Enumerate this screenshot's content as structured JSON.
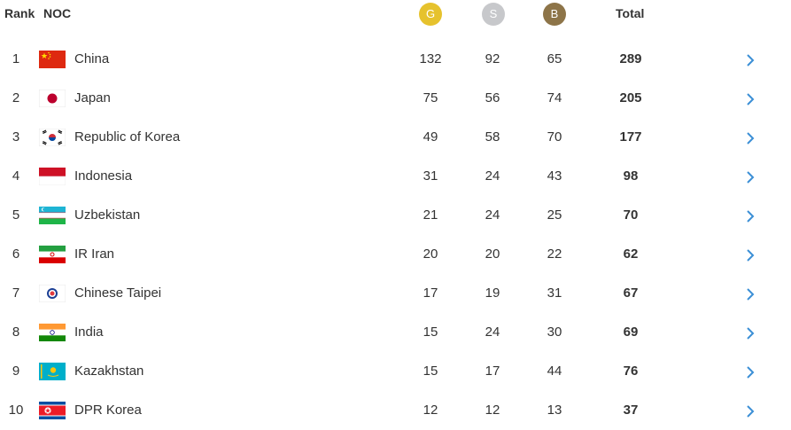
{
  "header": {
    "rank": "Rank",
    "noc": "NOC",
    "gold": "G",
    "silver": "S",
    "bronze": "B",
    "total": "Total"
  },
  "colors": {
    "gold": "#e6c22d",
    "silver": "#c7c8cb",
    "bronze": "#8d7448",
    "chevron": "#3b8fd6"
  },
  "rows": [
    {
      "rank": "1",
      "name": "China",
      "gold": "132",
      "silver": "92",
      "bronze": "65",
      "total": "289",
      "flag": "china-flag-icon"
    },
    {
      "rank": "2",
      "name": "Japan",
      "gold": "75",
      "silver": "56",
      "bronze": "74",
      "total": "205",
      "flag": "japan-flag-icon"
    },
    {
      "rank": "3",
      "name": "Republic of Korea",
      "gold": "49",
      "silver": "58",
      "bronze": "70",
      "total": "177",
      "flag": "korea-flag-icon"
    },
    {
      "rank": "4",
      "name": "Indonesia",
      "gold": "31",
      "silver": "24",
      "bronze": "43",
      "total": "98",
      "flag": "indonesia-flag-icon"
    },
    {
      "rank": "5",
      "name": "Uzbekistan",
      "gold": "21",
      "silver": "24",
      "bronze": "25",
      "total": "70",
      "flag": "uzbekistan-flag-icon"
    },
    {
      "rank": "6",
      "name": "IR Iran",
      "gold": "20",
      "silver": "20",
      "bronze": "22",
      "total": "62",
      "flag": "iran-flag-icon"
    },
    {
      "rank": "7",
      "name": "Chinese Taipei",
      "gold": "17",
      "silver": "19",
      "bronze": "31",
      "total": "67",
      "flag": "chinese-taipei-flag-icon"
    },
    {
      "rank": "8",
      "name": "India",
      "gold": "15",
      "silver": "24",
      "bronze": "30",
      "total": "69",
      "flag": "india-flag-icon"
    },
    {
      "rank": "9",
      "name": "Kazakhstan",
      "gold": "15",
      "silver": "17",
      "bronze": "44",
      "total": "76",
      "flag": "kazakhstan-flag-icon"
    },
    {
      "rank": "10",
      "name": "DPR Korea",
      "gold": "12",
      "silver": "12",
      "bronze": "13",
      "total": "37",
      "flag": "dpr-korea-flag-icon"
    }
  ]
}
